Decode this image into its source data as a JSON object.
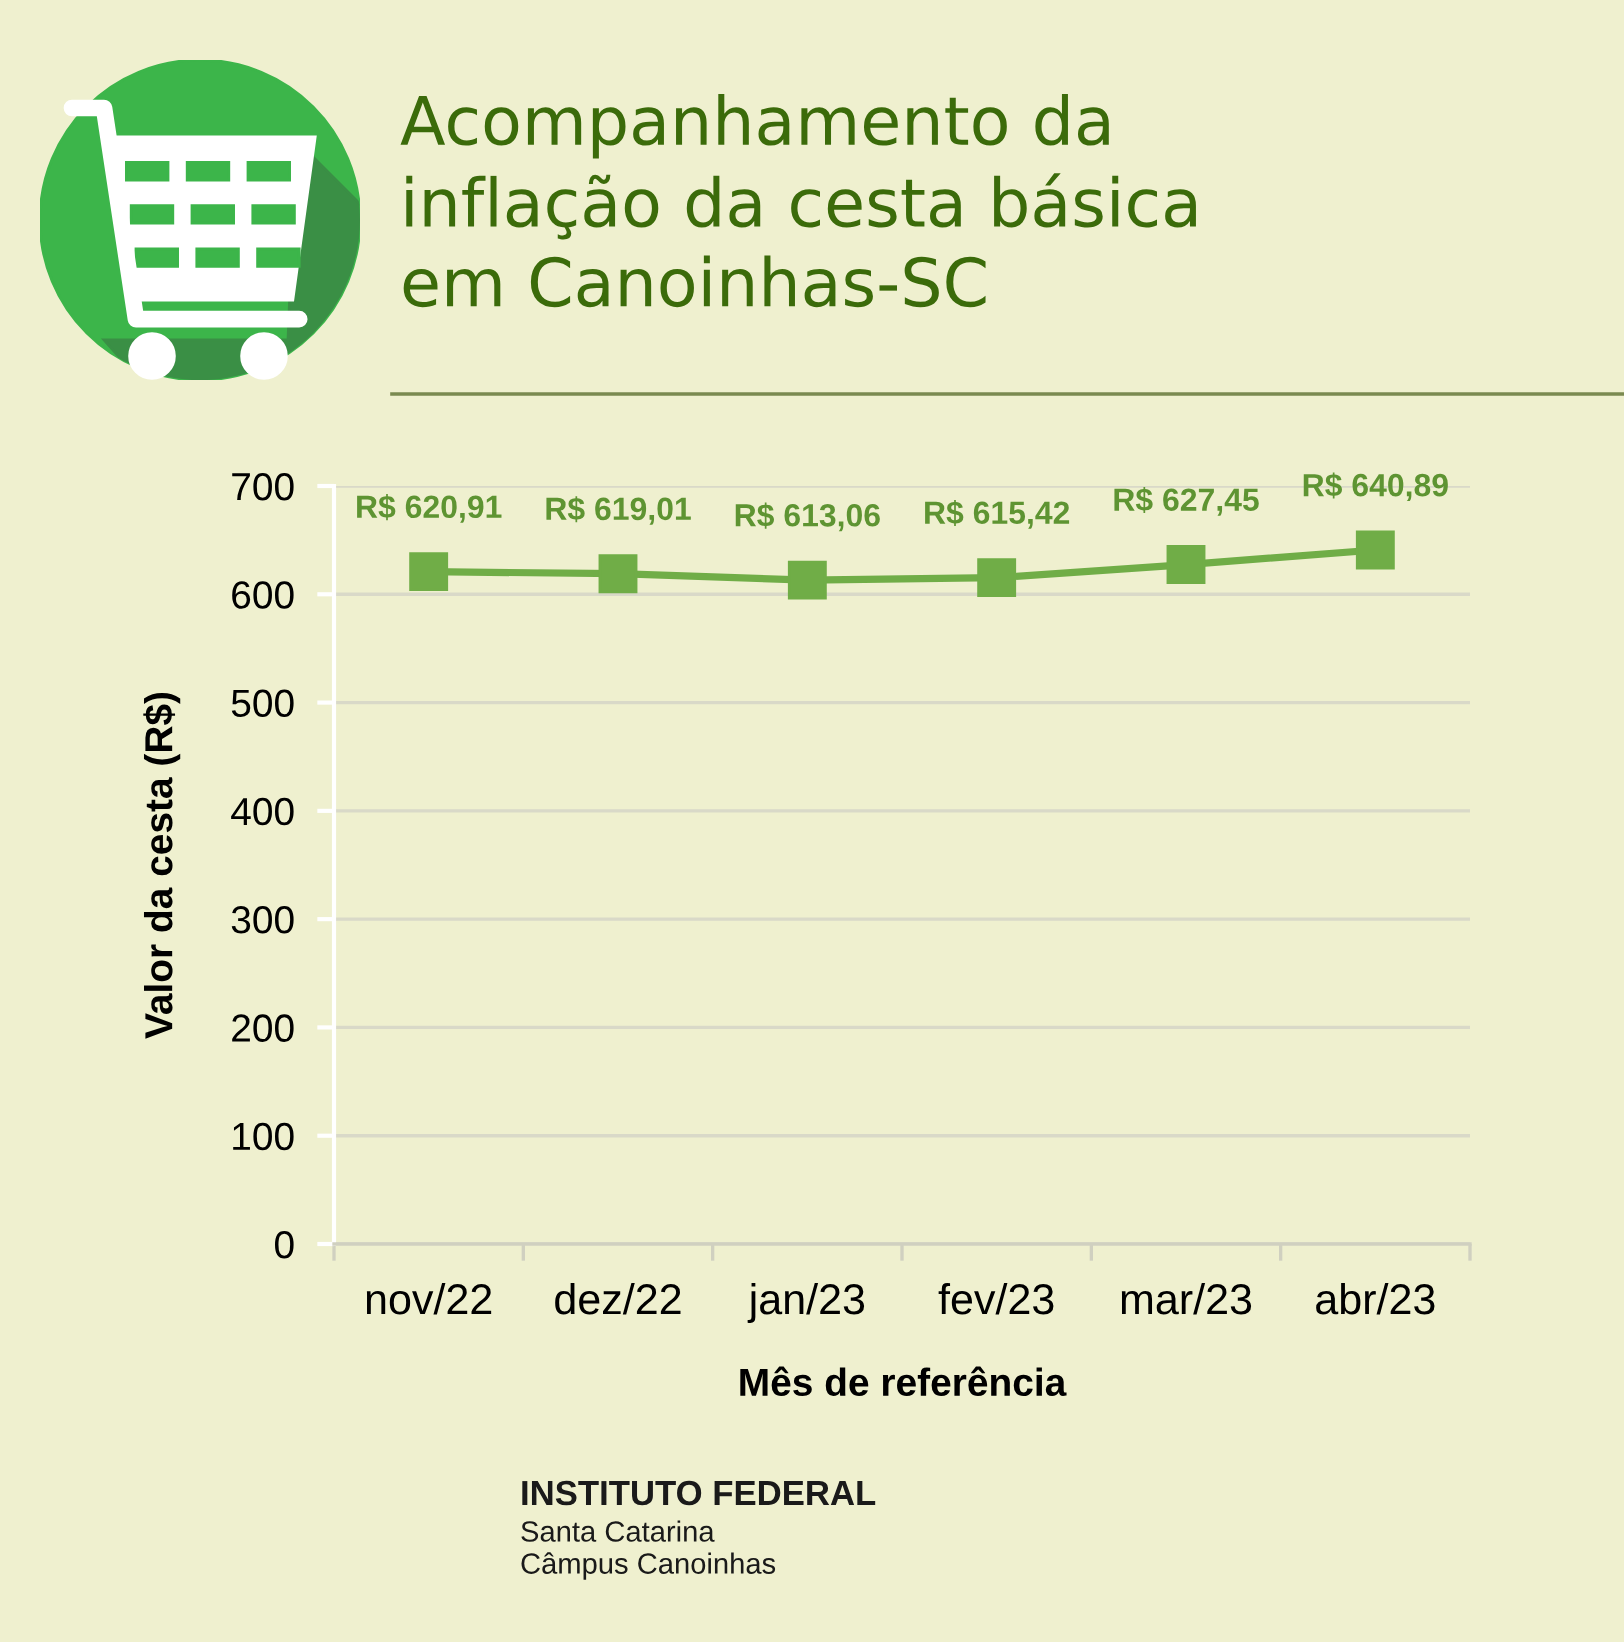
{
  "chart_data": {
    "type": "line",
    "title": "Acompanhamento da\ninflação da cesta básica\nem Canoinhas-SC",
    "xlabel": "Mês de referência",
    "ylabel": "Valor da cesta (R$)",
    "categories": [
      "nov/22",
      "dez/22",
      "jan/23",
      "fev/23",
      "mar/23",
      "abr/23"
    ],
    "series": [
      {
        "color": "#70ad47",
        "values": [
          620.91,
          619.01,
          613.06,
          615.42,
          627.45,
          640.89
        ],
        "value_labels": [
          "R$ 620,91",
          "R$ 619,01",
          "R$ 613,06",
          "R$ 615,42",
          "R$ 627,45",
          "R$ 640,89"
        ]
      }
    ],
    "ylim": [
      0,
      700
    ],
    "yticks": [
      0,
      100,
      200,
      300,
      400,
      500,
      600,
      700
    ],
    "grid": "y",
    "marker": "square",
    "line_style": "solid",
    "annotations": [
      "INSTITUTO FEDERAL",
      "Santa Catarina",
      "Câmpus Canoinhas"
    ]
  }
}
